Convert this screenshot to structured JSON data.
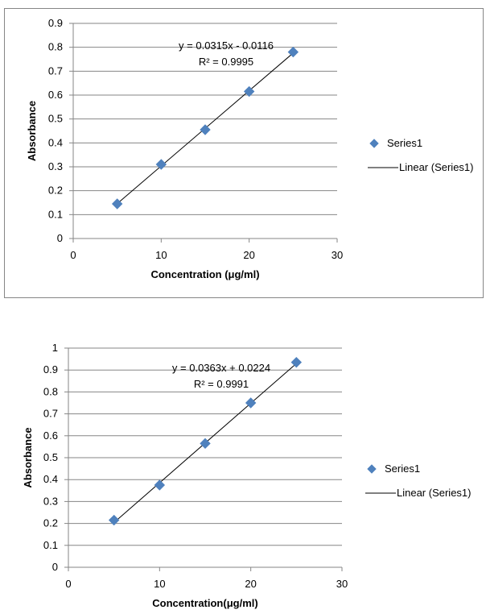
{
  "chart_data": [
    {
      "type": "scatter",
      "xlabel": "Concentration (μg/ml)",
      "ylabel": "Absorbance",
      "xlim": [
        0,
        30
      ],
      "ylim": [
        0,
        0.9
      ],
      "x_ticks": [
        "0",
        "10",
        "20",
        "30"
      ],
      "y_ticks": [
        "0",
        "0.1",
        "0.2",
        "0.3",
        "0.4",
        "0.5",
        "0.6",
        "0.7",
        "0.8",
        "0.9"
      ],
      "grid": "horizontal",
      "legend_position": "right",
      "series": [
        {
          "name": "Series1",
          "x": [
            5,
            10,
            15,
            20,
            25
          ],
          "y": [
            0.145,
            0.31,
            0.455,
            0.615,
            0.78
          ],
          "color": "#4F81BD",
          "marker": "diamond"
        }
      ],
      "trendline": {
        "name": "Linear (Series1)",
        "slope": 0.0315,
        "intercept": -0.0116,
        "color": "#000000"
      },
      "annotations": [
        "y = 0.0315x - 0.0116",
        "R² = 0.9995"
      ]
    },
    {
      "type": "scatter",
      "xlabel": "Concentration(μg/ml)",
      "ylabel": "Absorbance",
      "xlim": [
        0,
        30
      ],
      "ylim": [
        0,
        1
      ],
      "x_ticks": [
        "0",
        "10",
        "20",
        "30"
      ],
      "y_ticks": [
        "0",
        "0.1",
        "0.2",
        "0.3",
        "0.4",
        "0.5",
        "0.6",
        "0.7",
        "0.8",
        "0.9",
        "1"
      ],
      "grid": "horizontal",
      "legend_position": "right",
      "series": [
        {
          "name": "Series1",
          "x": [
            5,
            10,
            15,
            20,
            25
          ],
          "y": [
            0.215,
            0.375,
            0.565,
            0.75,
            0.935
          ],
          "color": "#4F81BD",
          "marker": "diamond"
        }
      ],
      "trendline": {
        "name": "Linear (Series1)",
        "slope": 0.0363,
        "intercept": 0.0224,
        "color": "#000000"
      },
      "annotations": [
        "y = 0.0363x + 0.0224",
        "R² = 0.9991"
      ]
    }
  ]
}
